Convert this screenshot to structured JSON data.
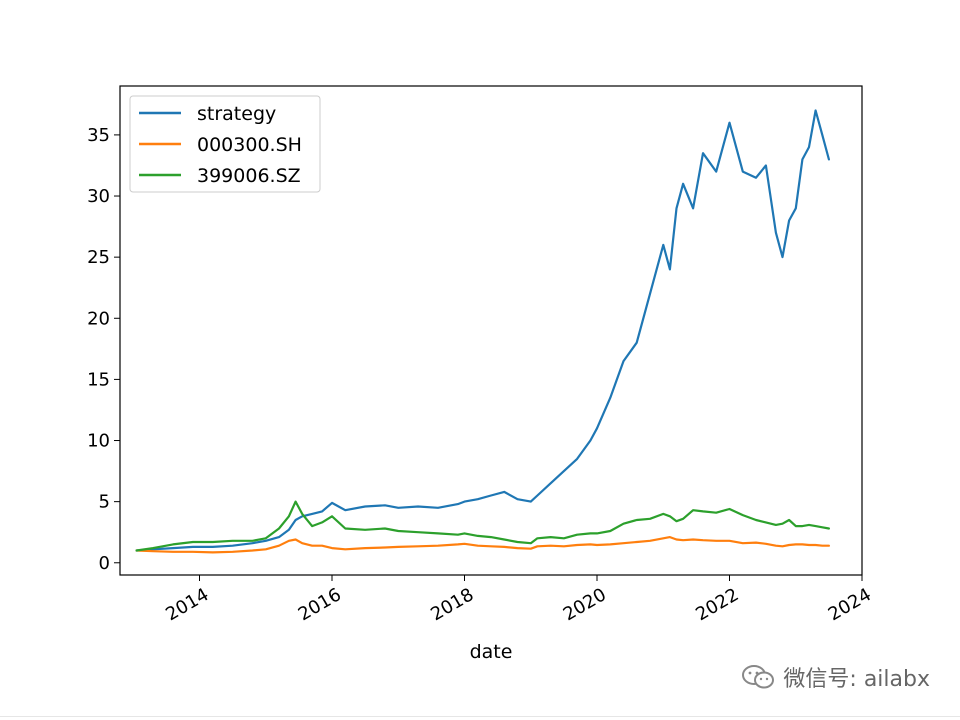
{
  "chart_data": {
    "type": "line",
    "title": "",
    "xlabel": "date",
    "ylabel": "",
    "xlim": [
      2012.8,
      2024.0
    ],
    "ylim": [
      -1,
      39
    ],
    "x_ticks": [
      2014,
      2016,
      2018,
      2020,
      2022,
      2024
    ],
    "x_tick_labels": [
      "2014",
      "2016",
      "2018",
      "2020",
      "2022",
      "2024"
    ],
    "y_ticks": [
      0,
      5,
      10,
      15,
      20,
      25,
      30,
      35
    ],
    "y_tick_labels": [
      "0",
      "5",
      "10",
      "15",
      "20",
      "25",
      "30",
      "35"
    ],
    "grid": false,
    "legend_position": "top-left",
    "x": [
      2013.05,
      2013.3,
      2013.6,
      2013.9,
      2014.2,
      2014.5,
      2014.8,
      2015.0,
      2015.2,
      2015.35,
      2015.45,
      2015.55,
      2015.7,
      2015.85,
      2016.0,
      2016.2,
      2016.5,
      2016.8,
      2017.0,
      2017.3,
      2017.6,
      2017.9,
      2018.0,
      2018.2,
      2018.4,
      2018.6,
      2018.8,
      2019.0,
      2019.1,
      2019.3,
      2019.5,
      2019.7,
      2019.9,
      2020.0,
      2020.2,
      2020.4,
      2020.6,
      2020.8,
      2021.0,
      2021.1,
      2021.2,
      2021.3,
      2021.45,
      2021.6,
      2021.8,
      2022.0,
      2022.2,
      2022.4,
      2022.55,
      2022.7,
      2022.8,
      2022.9,
      2023.0,
      2023.1,
      2023.2,
      2023.3,
      2023.4,
      2023.5
    ],
    "series": [
      {
        "name": "strategy",
        "color": "#1f77b4",
        "values": [
          1.0,
          1.1,
          1.2,
          1.3,
          1.3,
          1.4,
          1.6,
          1.8,
          2.1,
          2.7,
          3.5,
          3.8,
          4.0,
          4.2,
          4.9,
          4.3,
          4.6,
          4.7,
          4.5,
          4.6,
          4.5,
          4.8,
          5.0,
          5.2,
          5.5,
          5.8,
          5.2,
          5.0,
          5.5,
          6.5,
          7.5,
          8.5,
          10.0,
          11.0,
          13.5,
          16.5,
          18.0,
          22.0,
          26.0,
          24.0,
          29.0,
          31.0,
          29.0,
          33.5,
          32.0,
          36.0,
          32.0,
          31.5,
          32.5,
          27.0,
          25.0,
          28.0,
          29.0,
          33.0,
          34.0,
          37.0,
          35.0,
          33.0
        ]
      },
      {
        "name": "000300.SH",
        "color": "#ff7f0e",
        "values": [
          1.0,
          0.95,
          0.9,
          0.9,
          0.85,
          0.9,
          1.0,
          1.1,
          1.4,
          1.8,
          1.9,
          1.6,
          1.4,
          1.4,
          1.2,
          1.1,
          1.2,
          1.25,
          1.3,
          1.35,
          1.4,
          1.5,
          1.55,
          1.4,
          1.35,
          1.3,
          1.2,
          1.15,
          1.35,
          1.4,
          1.35,
          1.45,
          1.5,
          1.45,
          1.5,
          1.6,
          1.7,
          1.8,
          2.0,
          2.1,
          1.9,
          1.85,
          1.9,
          1.85,
          1.8,
          1.8,
          1.6,
          1.65,
          1.55,
          1.4,
          1.35,
          1.45,
          1.5,
          1.5,
          1.45,
          1.45,
          1.4,
          1.4
        ]
      },
      {
        "name": "399006.SZ",
        "color": "#2ca02c",
        "values": [
          1.0,
          1.2,
          1.5,
          1.7,
          1.7,
          1.8,
          1.8,
          2.0,
          2.8,
          3.8,
          5.0,
          4.0,
          3.0,
          3.3,
          3.8,
          2.8,
          2.7,
          2.8,
          2.6,
          2.5,
          2.4,
          2.3,
          2.4,
          2.2,
          2.1,
          1.9,
          1.7,
          1.6,
          2.0,
          2.1,
          2.0,
          2.3,
          2.4,
          2.4,
          2.6,
          3.2,
          3.5,
          3.6,
          4.0,
          3.8,
          3.4,
          3.6,
          4.3,
          4.2,
          4.1,
          4.4,
          3.9,
          3.5,
          3.3,
          3.1,
          3.2,
          3.5,
          3.0,
          3.0,
          3.1,
          3.0,
          2.9,
          2.8
        ]
      }
    ]
  },
  "watermark": {
    "text": "微信号: ailabx",
    "icon": "wechat-icon"
  }
}
